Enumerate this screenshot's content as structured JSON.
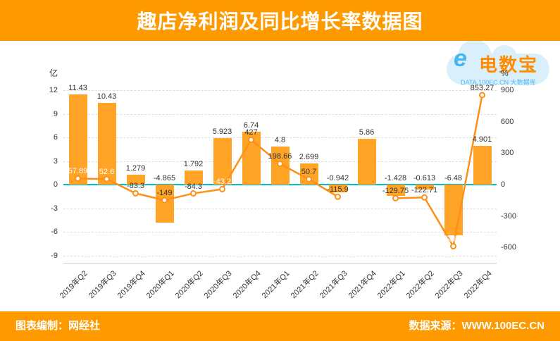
{
  "header": {
    "title": "趣店净利润及同比增长率数据图"
  },
  "footer": {
    "left": "图表编制：网经社",
    "right": "数据来源：WWW.100EC.CN"
  },
  "watermark": {
    "e_mark": "e",
    "brand": "电数宝",
    "sub": "DATA.100EC.CN  大数据库"
  },
  "chart_data": {
    "type": "bar+line combo",
    "title": "趣店净利润及同比增长率数据图",
    "categories": [
      "2019年Q2",
      "2019年Q3",
      "2019年Q4",
      "2020年Q1",
      "2020年Q2",
      "2020年Q3",
      "2020年Q4",
      "2021年Q1",
      "2021年Q2",
      "2021年Q3",
      "2021年Q4",
      "2022年Q1",
      "2022年Q2",
      "2022年Q3",
      "2022年Q4"
    ],
    "series": [
      {
        "name": "净利润",
        "type": "bar",
        "unit": "亿",
        "color": "#ffa426",
        "values": [
          11.43,
          10.43,
          1.279,
          -4.865,
          1.792,
          5.923,
          6.74,
          4.8,
          2.699,
          -0.942,
          5.86,
          -1.428,
          -0.613,
          -6.48,
          4.901
        ],
        "labels": [
          "11.43",
          "10.43",
          "1.279",
          "-4.865",
          "1.792",
          "5.923",
          "6.74",
          "4.8",
          "2.699",
          "-0.942",
          "5.86",
          "-1.428",
          "-0.613",
          "-6.48",
          "4.901"
        ]
      },
      {
        "name": "同比增长率",
        "type": "line",
        "unit": "%",
        "color": "#ff8f17",
        "values": [
          57.89,
          52.6,
          -83.3,
          -149,
          -84.3,
          -43.2,
          427,
          198.66,
          50.7,
          -115.9,
          null,
          -129.75,
          -122.71,
          -588.1,
          853.27
        ],
        "labels": [
          "57.89",
          "52.6",
          "-83.3",
          "-149",
          "-84.3",
          "-43.2",
          "427",
          "198.66",
          "50.7",
          "-115.9",
          "",
          "-129.75",
          "-122.71",
          "-588.1",
          "853.27"
        ],
        "label_on_bar": [
          true,
          true,
          false,
          false,
          false,
          true,
          false,
          false,
          false,
          false,
          false,
          false,
          false,
          true,
          false
        ]
      }
    ],
    "left_axis": {
      "unit": "亿",
      "ticks": [
        12,
        9,
        6,
        3,
        0,
        -3,
        -6,
        -9
      ],
      "max": 12,
      "min": -9
    },
    "right_axis": {
      "unit": "%",
      "ticks": [
        900,
        600,
        300,
        0,
        -300,
        -600
      ],
      "max": 900,
      "min": -600
    },
    "layout_hints": {
      "grid": "horizontal dashed",
      "legend": "none",
      "x_labels_rotated": true
    },
    "colors": {
      "zero_line": "#00bfcf",
      "grid": "#dddddd",
      "label": "#333333",
      "accent": "#ff9900"
    }
  }
}
